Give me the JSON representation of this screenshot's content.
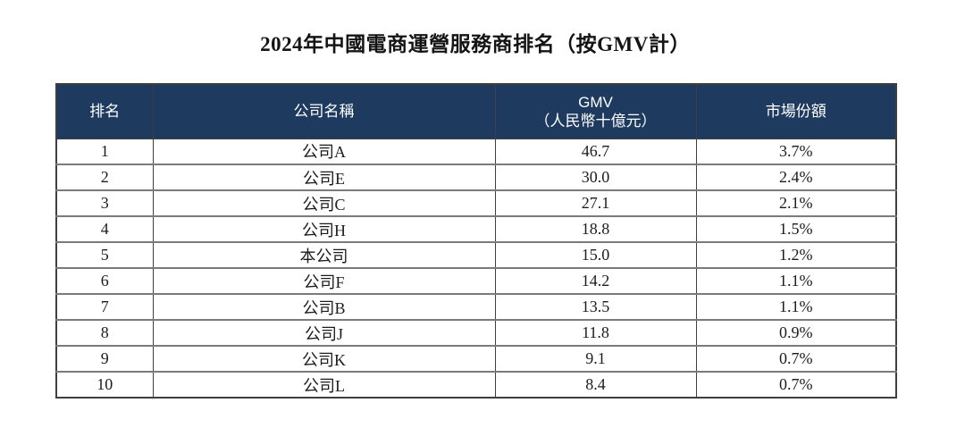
{
  "title": "2024年中國電商運營服務商排名（按GMV計）",
  "colors": {
    "header_bg": "#1e3a5f",
    "header_text": "#ffffff",
    "body_text": "#1c1c1c",
    "border_dark": "#3f3f3f",
    "border_mid": "#7a7a7a",
    "page_bg": "#ffffff"
  },
  "table": {
    "columns": {
      "rank": "排名",
      "company": "公司名稱",
      "gmv_line1": "GMV",
      "gmv_line2": "（人民幣十億元）",
      "share": "市場份額"
    },
    "rows": [
      {
        "rank": "1",
        "company": "公司A",
        "gmv": "46.7",
        "share": "3.7%"
      },
      {
        "rank": "2",
        "company": "公司E",
        "gmv": "30.0",
        "share": "2.4%"
      },
      {
        "rank": "3",
        "company": "公司C",
        "gmv": "27.1",
        "share": "2.1%"
      },
      {
        "rank": "4",
        "company": "公司H",
        "gmv": "18.8",
        "share": "1.5%"
      },
      {
        "rank": "5",
        "company": "本公司",
        "gmv": "15.0",
        "share": "1.2%"
      },
      {
        "rank": "6",
        "company": "公司F",
        "gmv": "14.2",
        "share": "1.1%"
      },
      {
        "rank": "7",
        "company": "公司B",
        "gmv": "13.5",
        "share": "1.1%"
      },
      {
        "rank": "8",
        "company": "公司J",
        "gmv": "11.8",
        "share": "0.9%"
      },
      {
        "rank": "9",
        "company": "公司K",
        "gmv": "9.1",
        "share": "0.7%"
      },
      {
        "rank": "10",
        "company": "公司L",
        "gmv": "8.4",
        "share": "0.7%"
      }
    ]
  },
  "chart_data": {
    "type": "table",
    "title": "2024年中國電商運營服務商排名（按GMV計）",
    "columns": [
      "排名",
      "公司名稱",
      "GMV（人民幣十億元）",
      "市場份額"
    ],
    "rows": [
      [
        "1",
        "公司A",
        46.7,
        "3.7%"
      ],
      [
        "2",
        "公司E",
        30.0,
        "2.4%"
      ],
      [
        "3",
        "公司C",
        27.1,
        "2.1%"
      ],
      [
        "4",
        "公司H",
        18.8,
        "1.5%"
      ],
      [
        "5",
        "本公司",
        15.0,
        "1.2%"
      ],
      [
        "6",
        "公司F",
        14.2,
        "1.1%"
      ],
      [
        "7",
        "公司B",
        13.5,
        "1.1%"
      ],
      [
        "8",
        "公司J",
        11.8,
        "0.9%"
      ],
      [
        "9",
        "公司K",
        9.1,
        "0.7%"
      ],
      [
        "10",
        "公司L",
        8.4,
        "0.7%"
      ]
    ]
  }
}
